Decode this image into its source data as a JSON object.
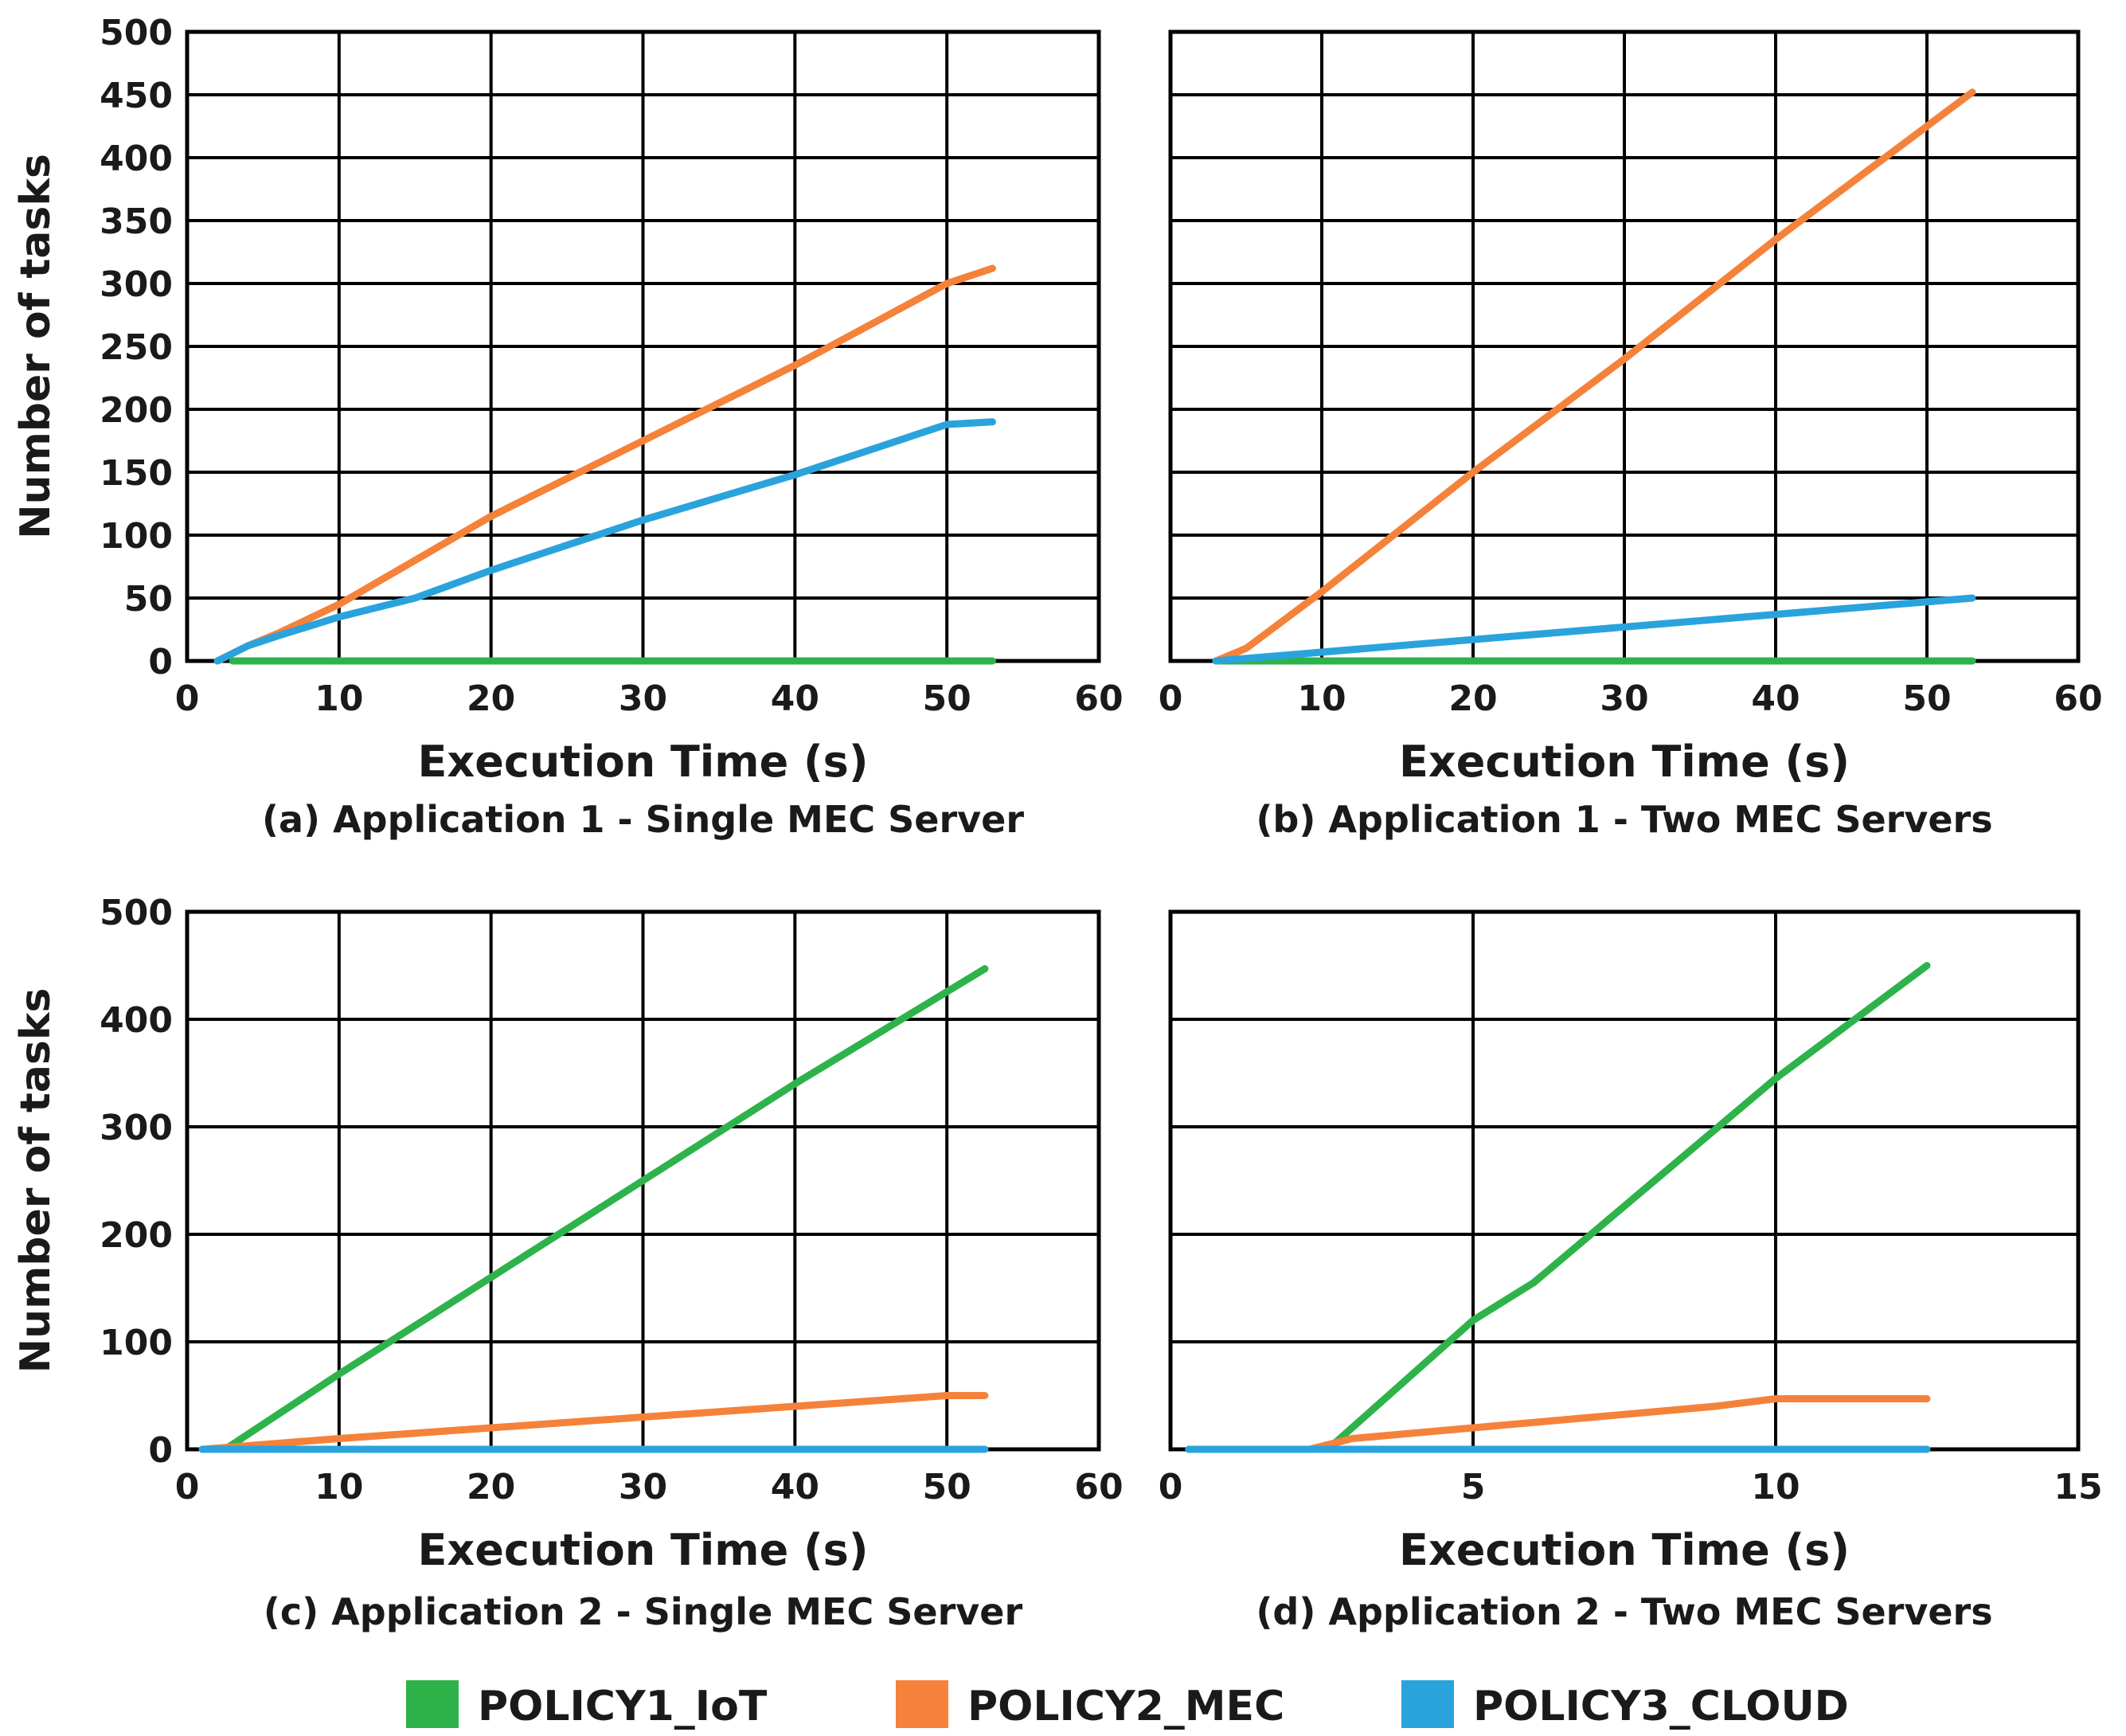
{
  "colors": {
    "policy1": "#2db34a",
    "policy2": "#f5823a",
    "policy3": "#2aa3dd",
    "grid": "#000000"
  },
  "legend": [
    {
      "key": "policy1",
      "label": "POLICY1_IoT"
    },
    {
      "key": "policy2",
      "label": "POLICY2_MEC"
    },
    {
      "key": "policy3",
      "label": "POLICY3_CLOUD"
    }
  ],
  "chart_data": [
    {
      "type": "line",
      "caption": "(a) Application 1 - Single MEC Server",
      "xlabel": "Execution Time (s)",
      "ylabel": "Number of tasks",
      "xlim": [
        0,
        60
      ],
      "ylim": [
        0,
        500
      ],
      "xticks": [
        0,
        10,
        20,
        30,
        40,
        50,
        60
      ],
      "yticks": [
        0,
        50,
        100,
        150,
        200,
        250,
        300,
        350,
        400,
        450,
        500
      ],
      "show_yticks": true,
      "series": [
        {
          "name": "POLICY1_IoT",
          "color_key": "policy1",
          "x": [
            3,
            53
          ],
          "y": [
            0,
            0
          ]
        },
        {
          "name": "POLICY2_MEC",
          "color_key": "policy2",
          "x": [
            2,
            4,
            6,
            10,
            20,
            30,
            40,
            50,
            53
          ],
          "y": [
            0,
            12,
            22,
            45,
            115,
            175,
            235,
            300,
            312
          ]
        },
        {
          "name": "POLICY3_CLOUD",
          "color_key": "policy3",
          "x": [
            2,
            4,
            6,
            10,
            15,
            20,
            30,
            40,
            50,
            53
          ],
          "y": [
            0,
            12,
            20,
            35,
            50,
            72,
            112,
            148,
            188,
            190
          ]
        }
      ]
    },
    {
      "type": "line",
      "caption": "(b) Application 1 - Two MEC Servers",
      "xlabel": "Execution Time (s)",
      "ylabel": "",
      "xlim": [
        0,
        60
      ],
      "ylim": [
        0,
        500
      ],
      "xticks": [
        0,
        10,
        20,
        30,
        40,
        50,
        60
      ],
      "yticks": [
        0,
        50,
        100,
        150,
        200,
        250,
        300,
        350,
        400,
        450,
        500
      ],
      "show_yticks": false,
      "series": [
        {
          "name": "POLICY1_IoT",
          "color_key": "policy1",
          "x": [
            3,
            53
          ],
          "y": [
            0,
            0
          ]
        },
        {
          "name": "POLICY2_MEC",
          "color_key": "policy2",
          "x": [
            3,
            5,
            10,
            20,
            30,
            40,
            50,
            53
          ],
          "y": [
            0,
            10,
            55,
            150,
            240,
            335,
            425,
            452
          ]
        },
        {
          "name": "POLICY3_CLOUD",
          "color_key": "policy3",
          "x": [
            3,
            53
          ],
          "y": [
            0,
            50
          ]
        }
      ]
    },
    {
      "type": "line",
      "caption": "(c) Application 2 - Single MEC Server",
      "xlabel": "Execution Time (s)",
      "ylabel": "Number of tasks",
      "xlim": [
        0,
        60
      ],
      "ylim": [
        0,
        500
      ],
      "xticks": [
        0,
        10,
        20,
        30,
        40,
        50,
        60
      ],
      "yticks": [
        0,
        100,
        200,
        300,
        400,
        500
      ],
      "show_yticks": true,
      "series": [
        {
          "name": "POLICY1_IoT",
          "color_key": "policy1",
          "x": [
            2.5,
            10,
            20,
            30,
            40,
            52.5
          ],
          "y": [
            0,
            70,
            160,
            250,
            340,
            447
          ]
        },
        {
          "name": "POLICY2_MEC",
          "color_key": "policy2",
          "x": [
            1,
            10,
            20,
            30,
            40,
            50,
            52.5
          ],
          "y": [
            0,
            10,
            20,
            30,
            40,
            50,
            50
          ]
        },
        {
          "name": "POLICY3_CLOUD",
          "color_key": "policy3",
          "x": [
            1,
            52.5
          ],
          "y": [
            0,
            0
          ]
        }
      ]
    },
    {
      "type": "line",
      "caption": "(d) Application 2 - Two MEC Servers",
      "xlabel": "Execution Time (s)",
      "ylabel": "",
      "xlim": [
        0,
        15
      ],
      "ylim": [
        0,
        500
      ],
      "xticks": [
        0,
        5,
        10,
        15
      ],
      "yticks": [
        0,
        100,
        200,
        300,
        400,
        500
      ],
      "show_yticks": false,
      "series": [
        {
          "name": "POLICY1_IoT",
          "color_key": "policy1",
          "x": [
            2.6,
            4,
            5,
            6,
            8,
            10,
            12.5
          ],
          "y": [
            0,
            70,
            120,
            155,
            250,
            345,
            450
          ]
        },
        {
          "name": "POLICY2_MEC",
          "color_key": "policy2",
          "x": [
            0.3,
            2.3,
            3,
            5,
            7,
            9,
            10,
            12.5
          ],
          "y": [
            0,
            0,
            10,
            20,
            30,
            40,
            47,
            47
          ]
        },
        {
          "name": "POLICY3_CLOUD",
          "color_key": "policy3",
          "x": [
            0.3,
            12.5
          ],
          "y": [
            0,
            0
          ]
        }
      ]
    }
  ]
}
